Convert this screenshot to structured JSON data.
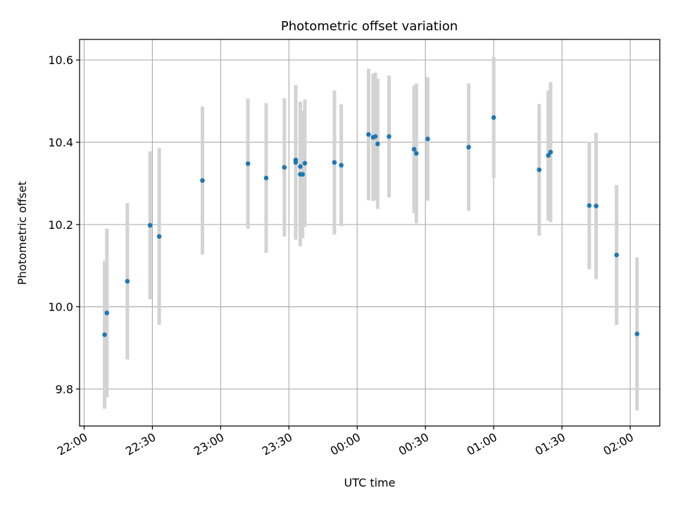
{
  "chart_data": {
    "type": "scatter",
    "title": "Photometric offset variation",
    "xlabel": "UTC time",
    "ylabel": "Photometric offset",
    "grid": true,
    "legend": "none",
    "x_ticks": [
      "22:00",
      "22:30",
      "23:00",
      "23:30",
      "00:00",
      "00:30",
      "01:00",
      "01:30",
      "02:00"
    ],
    "y_ticks": [
      "9.8",
      "10.0",
      "10.2",
      "10.4",
      "10.6"
    ],
    "x_range": [
      "21:58",
      "02:13"
    ],
    "ylim": [
      9.71,
      10.65
    ],
    "colors": {
      "point": "#1f77b4",
      "errorbar": "#d3d3d3",
      "grid": "#b0b0b0",
      "axes": "#000000"
    },
    "series": [
      {
        "points": [
          {
            "x": "22:09",
            "y": 9.932,
            "err": 0.18
          },
          {
            "x": "22:10",
            "y": 9.985,
            "err": 0.205
          },
          {
            "x": "22:19",
            "y": 10.062,
            "err": 0.19
          },
          {
            "x": "22:29",
            "y": 10.198,
            "err": 0.18
          },
          {
            "x": "22:33",
            "y": 10.171,
            "err": 0.215
          },
          {
            "x": "22:52",
            "y": 10.307,
            "err": 0.18
          },
          {
            "x": "23:12",
            "y": 10.348,
            "err": 0.158
          },
          {
            "x": "23:20",
            "y": 10.313,
            "err": 0.182
          },
          {
            "x": "23:28",
            "y": 10.339,
            "err": 0.168
          },
          {
            "x": "23:33",
            "y": 10.357,
            "err": 0.178
          },
          {
            "x": "23:33",
            "y": 10.351,
            "err": 0.188
          },
          {
            "x": "23:35",
            "y": 10.341,
            "err": 0.158
          },
          {
            "x": "23:35",
            "y": 10.322,
            "err": 0.175
          },
          {
            "x": "23:36",
            "y": 10.322,
            "err": 0.155
          },
          {
            "x": "23:37",
            "y": 10.349,
            "err": 0.155
          },
          {
            "x": "23:50",
            "y": 10.351,
            "err": 0.175
          },
          {
            "x": "23:53",
            "y": 10.344,
            "err": 0.148
          },
          {
            "x": "00:05",
            "y": 10.419,
            "err": 0.16
          },
          {
            "x": "00:07",
            "y": 10.412,
            "err": 0.155
          },
          {
            "x": "00:08",
            "y": 10.414,
            "err": 0.155
          },
          {
            "x": "00:09",
            "y": 10.396,
            "err": 0.158
          },
          {
            "x": "00:14",
            "y": 10.414,
            "err": 0.148
          },
          {
            "x": "00:25",
            "y": 10.383,
            "err": 0.155
          },
          {
            "x": "00:26",
            "y": 10.373,
            "err": 0.17
          },
          {
            "x": "00:31",
            "y": 10.408,
            "err": 0.15
          },
          {
            "x": "00:49",
            "y": 10.388,
            "err": 0.155
          },
          {
            "x": "01:00",
            "y": 10.46,
            "err": 0.147
          },
          {
            "x": "01:20",
            "y": 10.333,
            "err": 0.16
          },
          {
            "x": "01:24",
            "y": 10.368,
            "err": 0.158
          },
          {
            "x": "01:25",
            "y": 10.376,
            "err": 0.17
          },
          {
            "x": "01:42",
            "y": 10.246,
            "err": 0.155
          },
          {
            "x": "01:45",
            "y": 10.245,
            "err": 0.178
          },
          {
            "x": "01:54",
            "y": 10.126,
            "err": 0.17
          },
          {
            "x": "02:03",
            "y": 9.934,
            "err": 0.186
          }
        ]
      }
    ]
  }
}
